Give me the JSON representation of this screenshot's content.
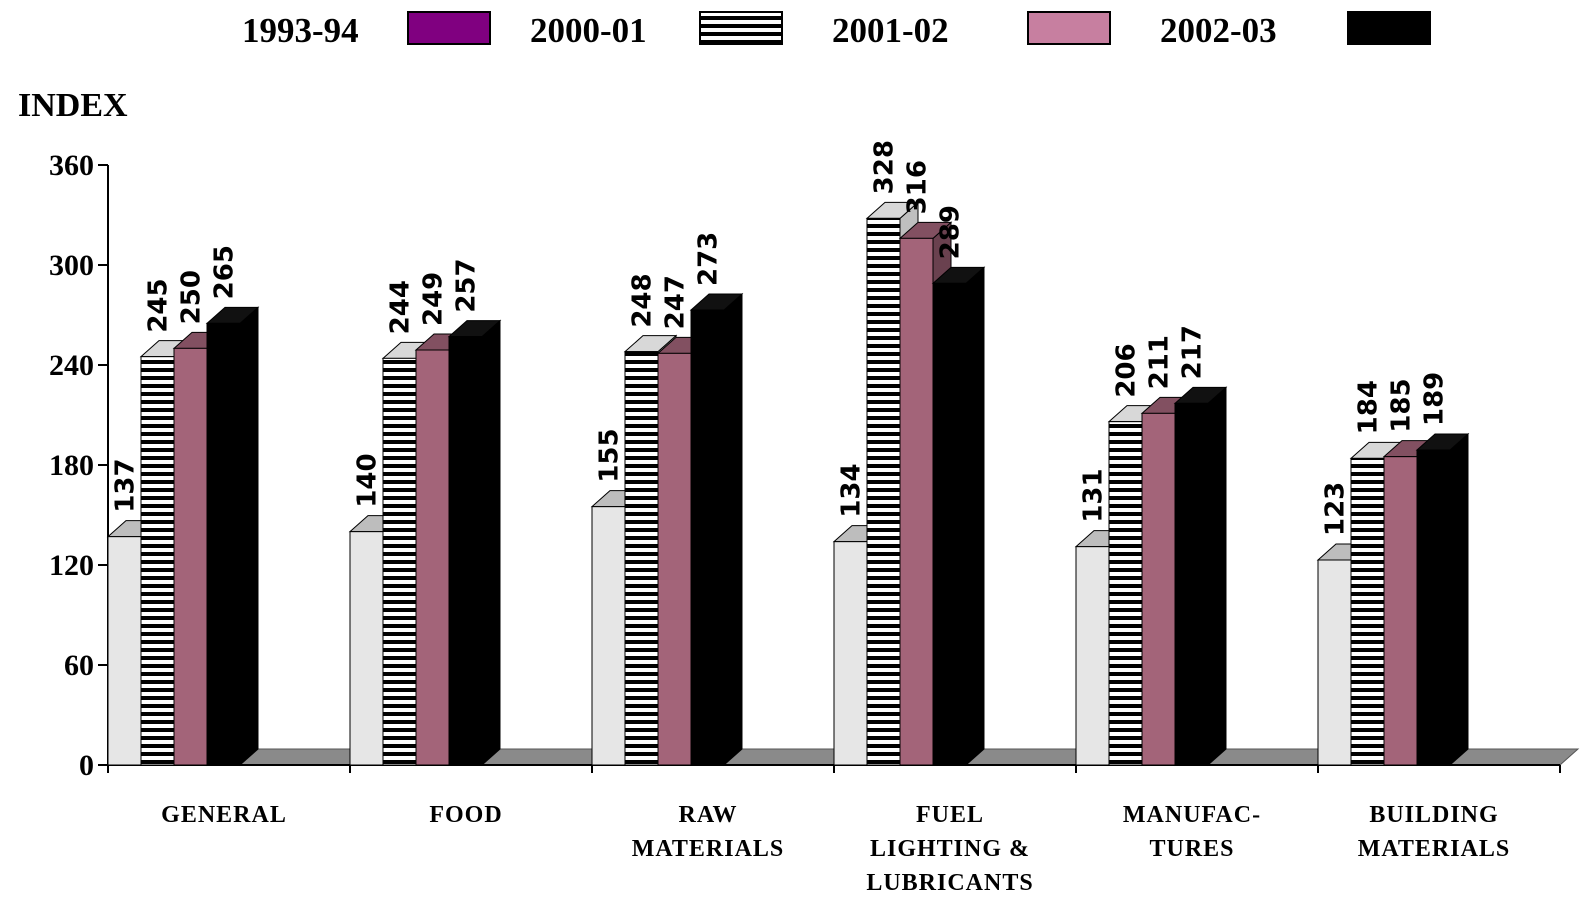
{
  "chart_data": {
    "type": "bar",
    "ylabel": "INDEX",
    "ylim": [
      0,
      360
    ],
    "yticks": [
      0,
      60,
      120,
      180,
      240,
      300,
      360
    ],
    "grid": false,
    "legend_position": "top",
    "categories": [
      [
        "GENERAL"
      ],
      [
        "FOOD"
      ],
      [
        "RAW",
        "MATERIALS"
      ],
      [
        "FUEL",
        "LIGHTING &",
        "LUBRICANTS"
      ],
      [
        "MANUFAC-",
        "TURES"
      ],
      [
        "BUILDING",
        "MATERIALS"
      ]
    ],
    "series": [
      {
        "name": "1993-94",
        "values": [
          137,
          140,
          155,
          134,
          131,
          123
        ]
      },
      {
        "name": "2000-01",
        "values": [
          245,
          244,
          248,
          328,
          206,
          184
        ]
      },
      {
        "name": "2001-02",
        "values": [
          250,
          249,
          247,
          316,
          211,
          185
        ]
      },
      {
        "name": "2002-03",
        "values": [
          265,
          257,
          273,
          289,
          217,
          189
        ]
      }
    ],
    "series_legend_swatch_colors": [
      "#800080",
      "hatched",
      "#c77fa0",
      "#000000"
    ],
    "series_bar_colors": [
      "#e6e6e6",
      "hatched",
      "#a36479",
      "#000000"
    ]
  }
}
